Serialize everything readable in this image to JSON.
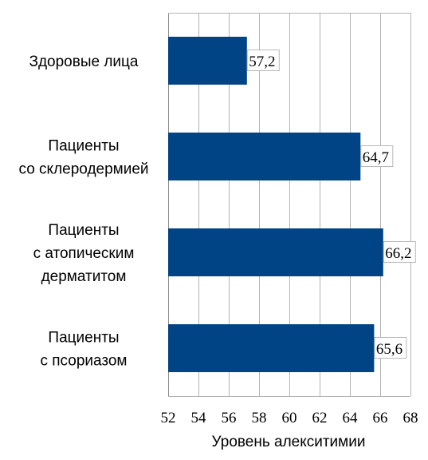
{
  "chart_data": {
    "type": "bar",
    "orientation": "horizontal",
    "categories": [
      [
        "Здоровые лица"
      ],
      [
        "Пациенты",
        "со склеродермией"
      ],
      [
        "Пациенты",
        "с атопическим",
        "дерматитом"
      ],
      [
        "Пациенты",
        "с псориазом"
      ]
    ],
    "values": [
      57.2,
      64.7,
      66.2,
      65.6
    ],
    "data_labels": [
      "57,2",
      "64,7",
      "66,2",
      "65,6"
    ],
    "xlabel": "Уровень алекситимии",
    "xlim": [
      52,
      68
    ],
    "xticks": [
      52,
      54,
      56,
      58,
      60,
      62,
      64,
      66,
      68
    ],
    "grid": true,
    "legend": "none",
    "bar_color": "#004485"
  }
}
